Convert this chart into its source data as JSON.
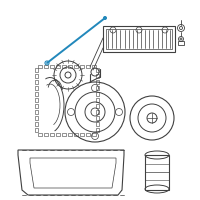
{
  "bg_color": "#ffffff",
  "line_color": "#404040",
  "highlight_color": "#2288bb",
  "fig_width": 2.0,
  "fig_height": 2.0,
  "dpi": 100,
  "border_color": "#dddddd"
}
